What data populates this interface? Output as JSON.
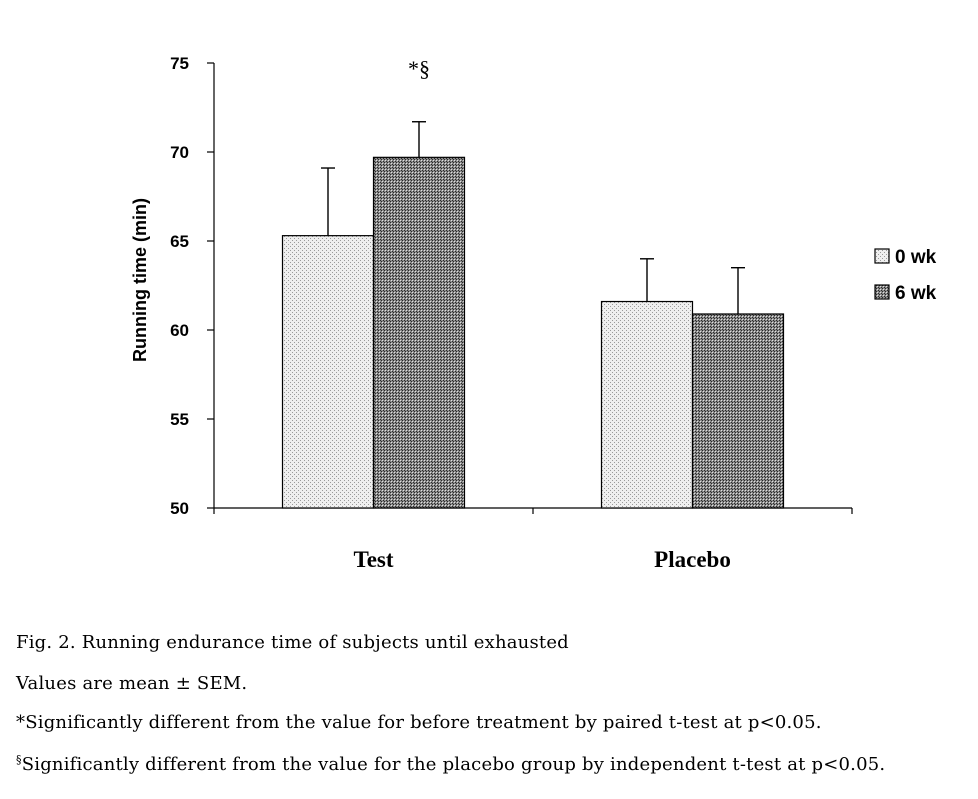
{
  "chart_data": {
    "type": "bar",
    "categories": [
      "Test",
      "Placebo"
    ],
    "series": [
      {
        "name": "0 wk",
        "values": [
          65.3,
          61.6
        ],
        "errors": [
          3.8,
          2.4
        ],
        "fill": "#d9d9d9"
      },
      {
        "name": "6 wk",
        "values": [
          69.7,
          60.9
        ],
        "errors": [
          2.0,
          2.6
        ],
        "fill": "#5a5a5a"
      }
    ],
    "ylabel": "Running time (min)",
    "xlabel": "",
    "ylim": [
      50,
      75
    ],
    "yticks": [
      50,
      55,
      60,
      65,
      70,
      75
    ],
    "legend_position": "right",
    "grid": false,
    "annotations": [
      {
        "text": "*§",
        "category": "Test",
        "series": "6 wk"
      }
    ]
  },
  "caption": {
    "title": "Fig. 2. Running endurance time of subjects until exhausted",
    "line1": "Values are mean ± SEM.",
    "line2": "*Significantly different from the value for before treatment by paired t-test at p<0.05.",
    "line3_mark": "§",
    "line3": "Significantly different from the value for the placebo group by independent t-test at p<0.05."
  }
}
